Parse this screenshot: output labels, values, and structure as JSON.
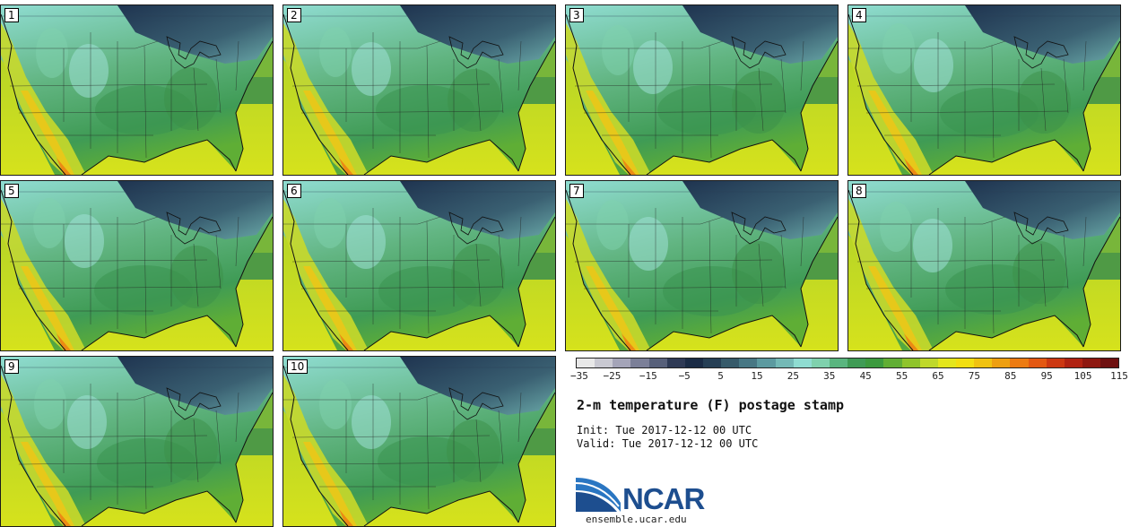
{
  "panels": [
    {
      "label": "1"
    },
    {
      "label": "2"
    },
    {
      "label": "3"
    },
    {
      "label": "4"
    },
    {
      "label": "5"
    },
    {
      "label": "6"
    },
    {
      "label": "7"
    },
    {
      "label": "8"
    },
    {
      "label": "9"
    },
    {
      "label": "10"
    }
  ],
  "legend": {
    "tick_labels": [
      "−35",
      "−25",
      "−15",
      "−5",
      "5",
      "15",
      "25",
      "35",
      "45",
      "55",
      "65",
      "75",
      "85",
      "95",
      "105",
      "115"
    ],
    "colors": [
      "#e8e8e8",
      "#c9c9d2",
      "#a4a4b8",
      "#7b7f98",
      "#57607a",
      "#2e3a55",
      "#1a2b45",
      "#263f55",
      "#365a6a",
      "#477784",
      "#5c9aa0",
      "#74b9b6",
      "#8fdcd1",
      "#7fd1ad",
      "#5ab57f",
      "#3f9b55",
      "#3c9a3e",
      "#61ae34",
      "#8fc42b",
      "#bfd82a",
      "#e4e61c",
      "#f2de10",
      "#f0c210",
      "#ee9f10",
      "#ec7b12",
      "#e35812",
      "#cc3812",
      "#b02212",
      "#8e1810",
      "#6e1010"
    ]
  },
  "chart_data": {
    "type": "heatmap",
    "title": "2-m temperature (F) postage stamp",
    "variable": "2-m temperature",
    "units": "F",
    "colorbar_range": [
      -35,
      115
    ],
    "colorbar_interval": 5,
    "members": 10,
    "init_label": "Init:",
    "init_time": "Tue 2017-12-12 00 UTC",
    "valid_label": "Valid:",
    "valid_time": "Tue 2017-12-12 00 UTC"
  },
  "branding": {
    "logo_text": "NCAR",
    "url": "ensemble.ucar.edu"
  }
}
